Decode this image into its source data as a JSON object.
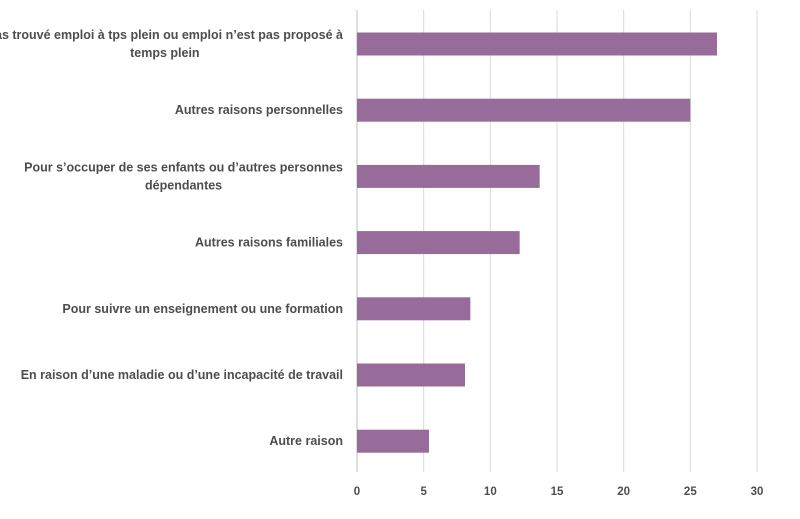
{
  "chart_data": {
    "type": "bar",
    "orientation": "horizontal",
    "title": "",
    "xlabel": "",
    "ylabel": "",
    "categories": [
      [
        "Pas trouvé emploi à tps plein ou emploi n’est pas proposé à",
        "temps plein"
      ],
      [
        "Autres raisons personnelles"
      ],
      [
        "Pour s’occuper de ses enfants ou d’autres personnes",
        "dépendantes"
      ],
      [
        "Autres raisons familiales"
      ],
      [
        "Pour suivre un enseignement ou une formation"
      ],
      [
        "En raison d’une maladie ou d’une incapacité de travail"
      ],
      [
        "Autre raison"
      ]
    ],
    "values": [
      27,
      25,
      13.7,
      12.2,
      8.5,
      8.1,
      5.4
    ],
    "xlim": [
      0,
      30
    ],
    "xticks": [
      "0",
      "5",
      "10",
      "15",
      "20",
      "25",
      "30"
    ],
    "grid": true,
    "legend": "none",
    "bar_color": "#976c9b"
  }
}
